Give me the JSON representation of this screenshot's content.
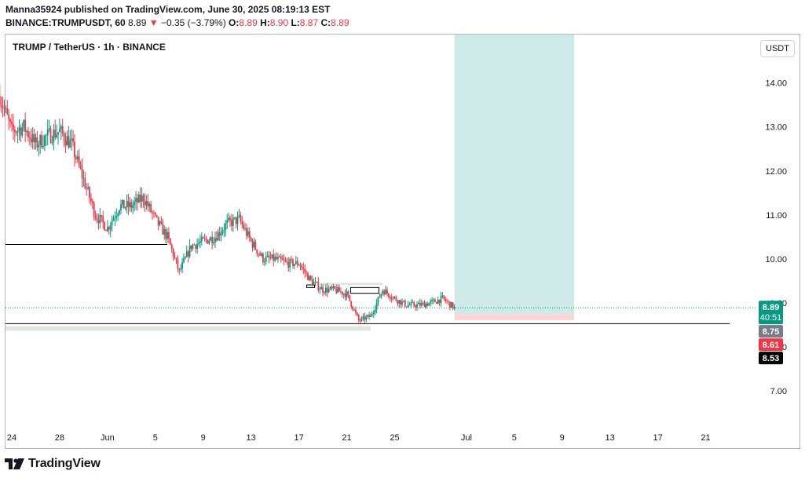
{
  "header": {
    "publisher_line": "Manna35924 published on TradingView.com, June 30, 2025 08:19:13 EST",
    "ticker": "BINANCE:TRUMPUSDT, 60",
    "price": "8.89",
    "change_arrow": "▼",
    "change": "−0.35 (−3.79%)",
    "o_label": "O:",
    "o": "8.89",
    "h_label": "H:",
    "h": "8.90",
    "l_label": "L:",
    "l": "8.87",
    "c_label": "C:",
    "c": "8.89"
  },
  "chart_title": "TRUMP / TetherUS · 1h · BINANCE",
  "currency_button": "USDT",
  "brand": "TradingView",
  "colors": {
    "up": "#089981",
    "down": "#f23645",
    "profit_zone": "#cde9e8",
    "loss_zone": "#fbd5d6",
    "support_zone": "#dde7dd"
  },
  "chart_data": {
    "type": "candlestick",
    "ylim": [
      6.2,
      15.1
    ],
    "y_ticks": [
      7.0,
      8.0,
      9.0,
      10.0,
      11.0,
      12.0,
      13.0,
      14.0
    ],
    "y_tick_labels": [
      "7.00",
      "8.00",
      "9.00",
      "10.00",
      "11.00",
      "12.00",
      "13.00",
      "14.00"
    ],
    "x_range": [
      "2025-05-24",
      "2025-07-23"
    ],
    "x_ticks": [
      {
        "date": "2025-05-24",
        "label": "24"
      },
      {
        "date": "2025-05-28",
        "label": "28"
      },
      {
        "date": "2025-06-01",
        "label": "Jun"
      },
      {
        "date": "2025-06-05",
        "label": "5"
      },
      {
        "date": "2025-06-09",
        "label": "9"
      },
      {
        "date": "2025-06-13",
        "label": "13"
      },
      {
        "date": "2025-06-17",
        "label": "17"
      },
      {
        "date": "2025-06-21",
        "label": "21"
      },
      {
        "date": "2025-06-25",
        "label": "25"
      },
      {
        "date": "2025-07-01",
        "label": "Jul"
      },
      {
        "date": "2025-07-05",
        "label": "5"
      },
      {
        "date": "2025-07-09",
        "label": "9"
      },
      {
        "date": "2025-07-13",
        "label": "13"
      },
      {
        "date": "2025-07-17",
        "label": "17"
      },
      {
        "date": "2025-07-21",
        "label": "21"
      }
    ],
    "price_path": [
      {
        "date": "2025-05-23",
        "price": 13.7
      },
      {
        "date": "2025-05-24",
        "price": 12.9
      },
      {
        "date": "2025-05-25",
        "price": 13.0
      },
      {
        "date": "2025-05-26",
        "price": 12.6
      },
      {
        "date": "2025-05-27",
        "price": 12.8
      },
      {
        "date": "2025-05-28",
        "price": 12.9
      },
      {
        "date": "2025-05-29",
        "price": 12.6
      },
      {
        "date": "2025-05-30",
        "price": 11.8
      },
      {
        "date": "2025-05-31",
        "price": 11.0
      },
      {
        "date": "2025-06-01",
        "price": 10.7
      },
      {
        "date": "2025-06-02",
        "price": 11.2
      },
      {
        "date": "2025-06-03",
        "price": 11.2
      },
      {
        "date": "2025-06-04",
        "price": 11.4
      },
      {
        "date": "2025-06-05",
        "price": 10.9
      },
      {
        "date": "2025-06-06",
        "price": 10.5
      },
      {
        "date": "2025-06-07",
        "price": 9.7
      },
      {
        "date": "2025-06-08",
        "price": 10.3
      },
      {
        "date": "2025-06-09",
        "price": 10.4
      },
      {
        "date": "2025-06-10",
        "price": 10.5
      },
      {
        "date": "2025-06-11",
        "price": 10.8
      },
      {
        "date": "2025-06-12",
        "price": 10.9
      },
      {
        "date": "2025-06-13",
        "price": 10.4
      },
      {
        "date": "2025-06-14",
        "price": 10.0
      },
      {
        "date": "2025-06-15",
        "price": 10.0
      },
      {
        "date": "2025-06-16",
        "price": 9.9
      },
      {
        "date": "2025-06-17",
        "price": 9.9
      },
      {
        "date": "2025-06-18",
        "price": 9.5
      },
      {
        "date": "2025-06-19",
        "price": 9.3
      },
      {
        "date": "2025-06-20",
        "price": 9.3
      },
      {
        "date": "2025-06-21",
        "price": 9.2
      },
      {
        "date": "2025-06-22",
        "price": 8.6
      },
      {
        "date": "2025-06-23",
        "price": 8.7
      },
      {
        "date": "2025-06-24",
        "price": 9.3
      },
      {
        "date": "2025-06-25",
        "price": 9.1
      },
      {
        "date": "2025-06-26",
        "price": 8.95
      },
      {
        "date": "2025-06-27",
        "price": 8.95
      },
      {
        "date": "2025-06-28",
        "price": 9.0
      },
      {
        "date": "2025-06-29",
        "price": 9.1
      },
      {
        "date": "2025-06-30",
        "price": 8.89
      }
    ],
    "horizontal_lines": [
      {
        "price": 10.33,
        "from": "2025-05-23",
        "to": "2025-06-06"
      },
      {
        "price": 8.53,
        "from": "2025-05-23",
        "to": "2025-07-23"
      }
    ],
    "current_price_line": 8.89,
    "support_zone": {
      "from": "2025-05-23",
      "to": "2025-06-23",
      "low": 8.37,
      "high": 8.47
    },
    "resistance_zone": {
      "from": "2025-06-19",
      "to": "2025-06-24",
      "low": 9.41,
      "high": 9.46
    },
    "long_position": {
      "from": "2025-06-30",
      "to": "2025-07-10",
      "entry": 8.75,
      "stop": 8.61,
      "target": 15.1
    },
    "price_labels": [
      {
        "text": "8.89",
        "sub": "40:51",
        "price": 8.89,
        "color": "#089981"
      },
      {
        "text": "8.75",
        "price": 8.75,
        "color": "#787b86"
      },
      {
        "text": "8.61",
        "price": 8.61,
        "color": "#f23645"
      },
      {
        "text": "8.53",
        "price": 8.53,
        "color": "#000000"
      }
    ]
  }
}
